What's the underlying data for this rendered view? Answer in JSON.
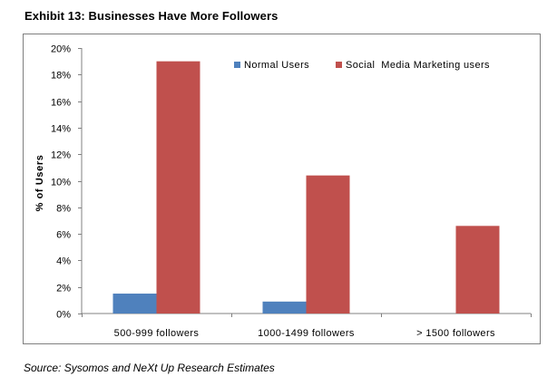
{
  "header": {
    "title": "Exhibit 13: Businesses Have More Followers"
  },
  "footer": {
    "source": "Source: Sysomos and NeXt Up Research Estimates"
  },
  "chart_data": {
    "type": "bar",
    "title": "",
    "xlabel": "",
    "ylabel": "% of Users",
    "categories": [
      "500-999 followers",
      "1000-1499 followers",
      "> 1500 followers"
    ],
    "series": [
      {
        "name": "Normal Users",
        "values": [
          1.5,
          0.9,
          0.0
        ],
        "color": "#4f81bd"
      },
      {
        "name": "Social  Media Marketing users",
        "values": [
          19.0,
          10.4,
          6.6
        ],
        "color": "#c0504d"
      }
    ],
    "ylim": [
      0,
      20
    ],
    "yticks": [
      0,
      2,
      4,
      6,
      8,
      10,
      12,
      14,
      16,
      18,
      20
    ],
    "ytick_suffix": "%",
    "legend": "top-right",
    "grid": false
  }
}
